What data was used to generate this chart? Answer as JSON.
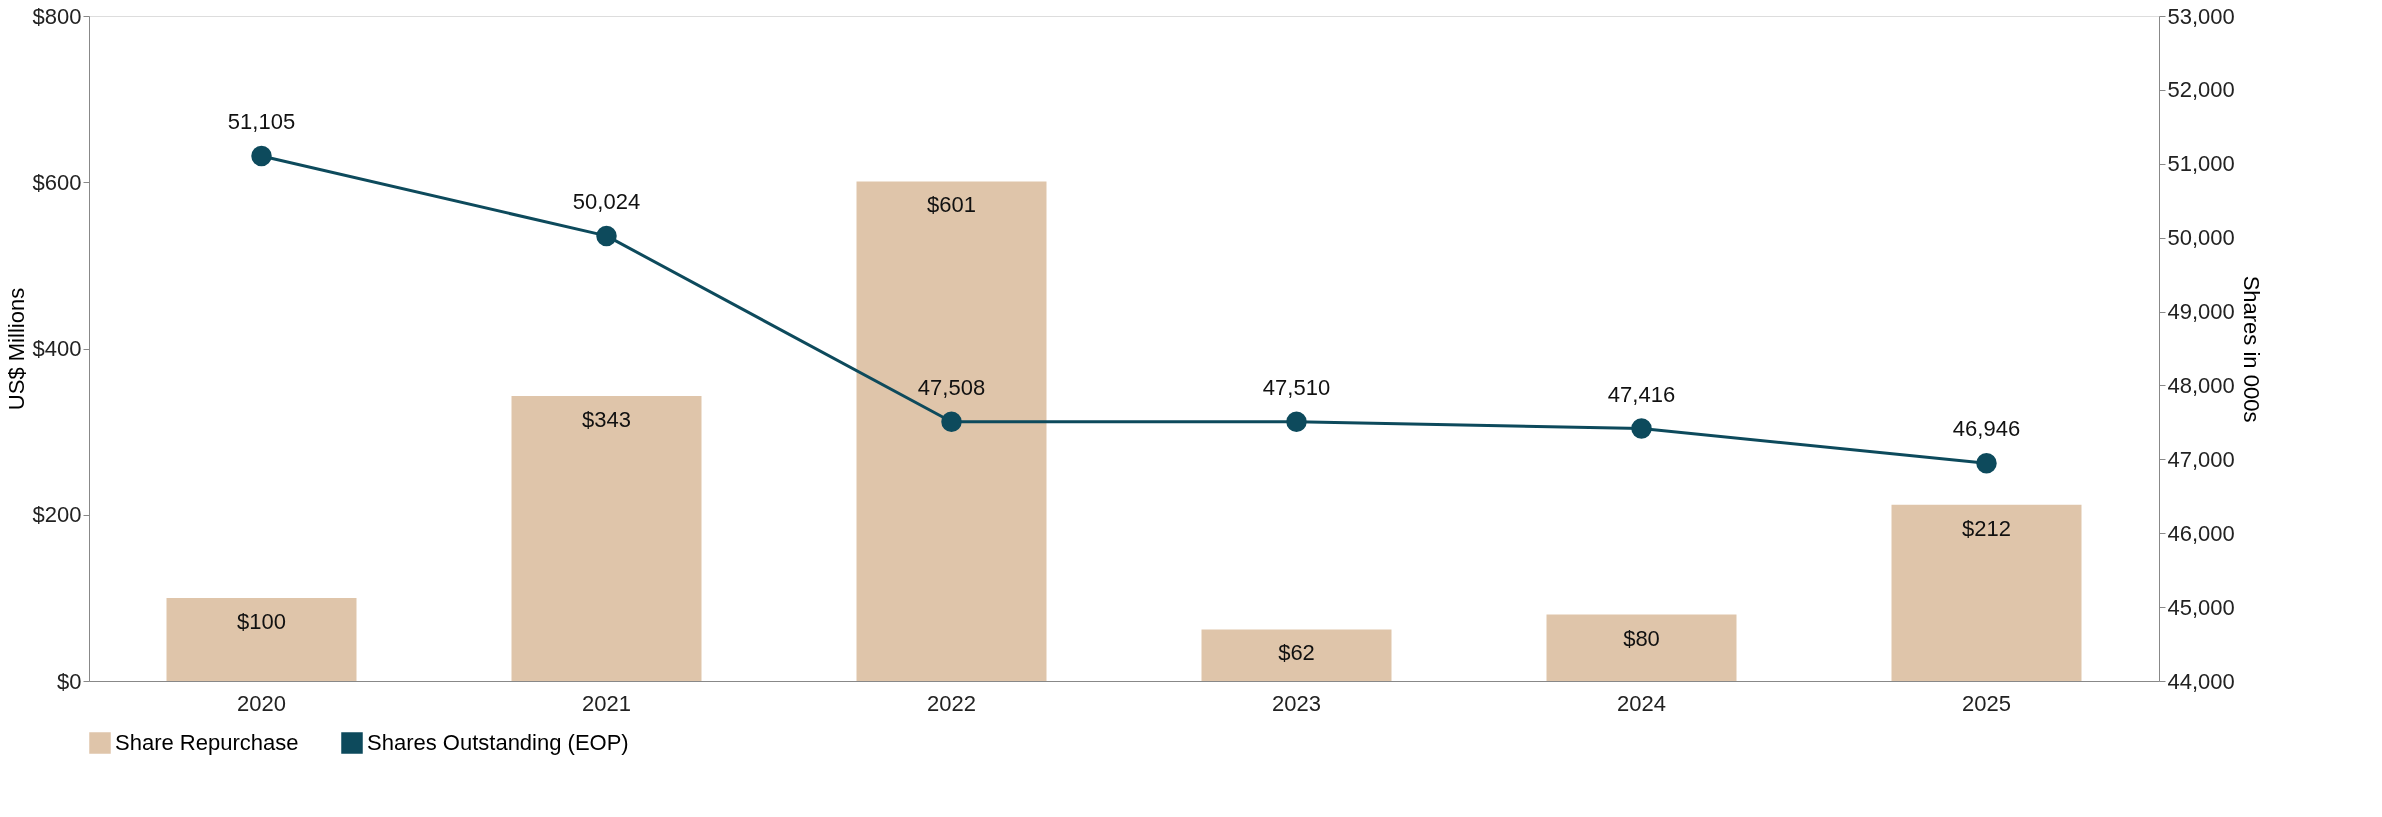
{
  "chart_data": {
    "type": "bar",
    "categories": [
      "2020",
      "2021",
      "2022",
      "2023",
      "2024",
      "2025"
    ],
    "ylabel": "US$ Millions",
    "y2label": "Shares in 000s",
    "ylim": [
      0,
      800
    ],
    "yticks": [
      {
        "value": 0,
        "label": "$0"
      },
      {
        "value": 200,
        "label": "$200"
      },
      {
        "value": 400,
        "label": "$400"
      },
      {
        "value": 600,
        "label": "$600"
      },
      {
        "value": 800,
        "label": "$800"
      }
    ],
    "y2lim": [
      44000,
      53000
    ],
    "y2ticks": [
      {
        "value": 44000,
        "label": "44,000"
      },
      {
        "value": 45000,
        "label": "45,000"
      },
      {
        "value": 46000,
        "label": "46,000"
      },
      {
        "value": 47000,
        "label": "47,000"
      },
      {
        "value": 48000,
        "label": "48,000"
      },
      {
        "value": 49000,
        "label": "49,000"
      },
      {
        "value": 50000,
        "label": "50,000"
      },
      {
        "value": 51000,
        "label": "51,000"
      },
      {
        "value": 52000,
        "label": "52,000"
      },
      {
        "value": 53000,
        "label": "53,000"
      }
    ],
    "series": [
      {
        "name": "Share Repurchase",
        "color": "#dfc5aa",
        "values": [
          100,
          343,
          601,
          62,
          80,
          212
        ],
        "value_labels": [
          "$100",
          "$343",
          "$601",
          "$62",
          "$80",
          "$212"
        ]
      },
      {
        "name": "Shares Outstanding (EOP)",
        "type": "line",
        "axis": "y2",
        "color": "#0d4a5c",
        "marker": "circle",
        "line_style": "solid",
        "values": [
          51105,
          50024,
          47508,
          47510,
          47416,
          46946
        ],
        "value_labels": [
          "51,105",
          "50,024",
          "47,508",
          "47,510",
          "47,416",
          "46,946"
        ]
      }
    ],
    "grid": false,
    "legend": "bottom"
  }
}
